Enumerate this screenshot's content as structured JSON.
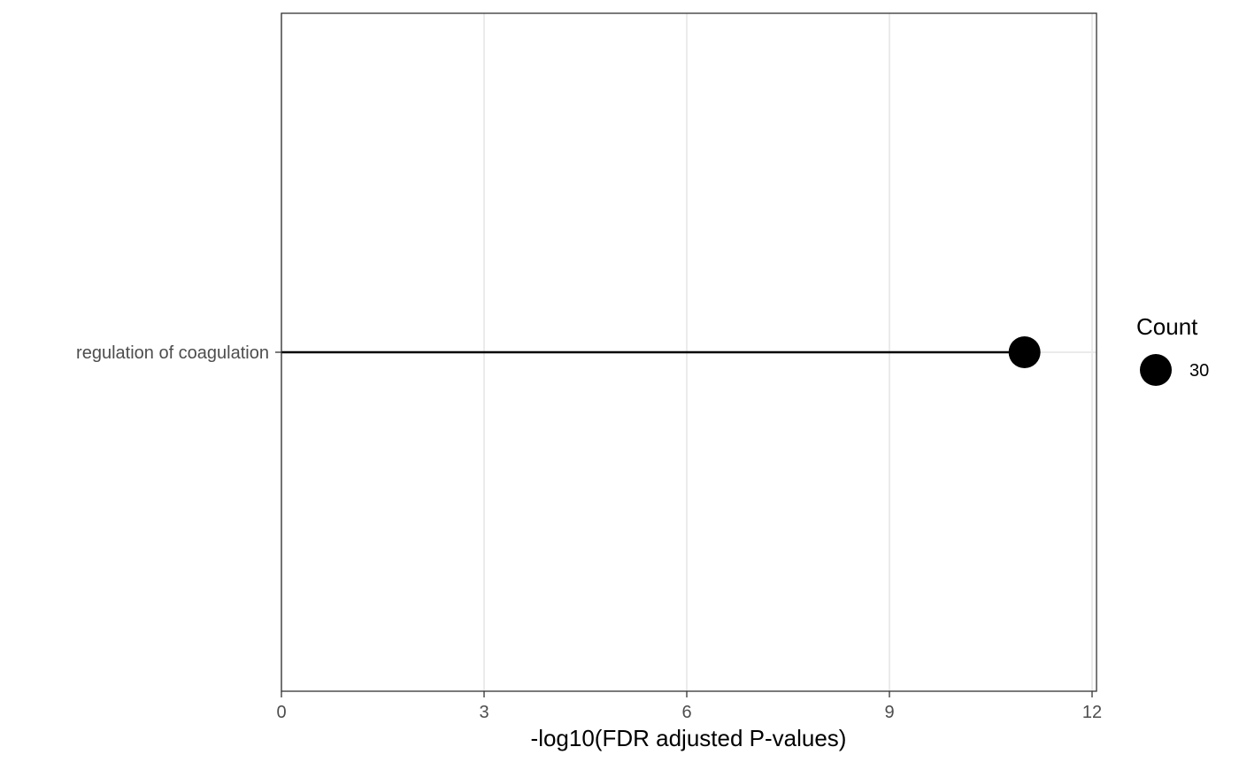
{
  "chart_data": {
    "type": "lollipop",
    "title": "",
    "xlabel": "-log10(FDR adjusted P-values)",
    "ylabel": "",
    "xlim": [
      0,
      12
    ],
    "xticks": [
      0,
      3,
      6,
      9,
      12
    ],
    "xtick_labels": [
      "0",
      "3",
      "6",
      "9",
      "12"
    ],
    "grid": true,
    "categories": [
      "regulation of coagulation"
    ],
    "values": [
      11
    ],
    "size_variable": "Count",
    "sizes": [
      30
    ],
    "legend": {
      "title": "Count",
      "placement": "right",
      "entries": [
        {
          "label": "30",
          "value": 30
        }
      ]
    },
    "colors": {
      "point": "#000000",
      "segment": "#000000",
      "grid": "#ebebeb",
      "panel_border": "#333333",
      "tick_text": "#4d4d4d"
    }
  }
}
